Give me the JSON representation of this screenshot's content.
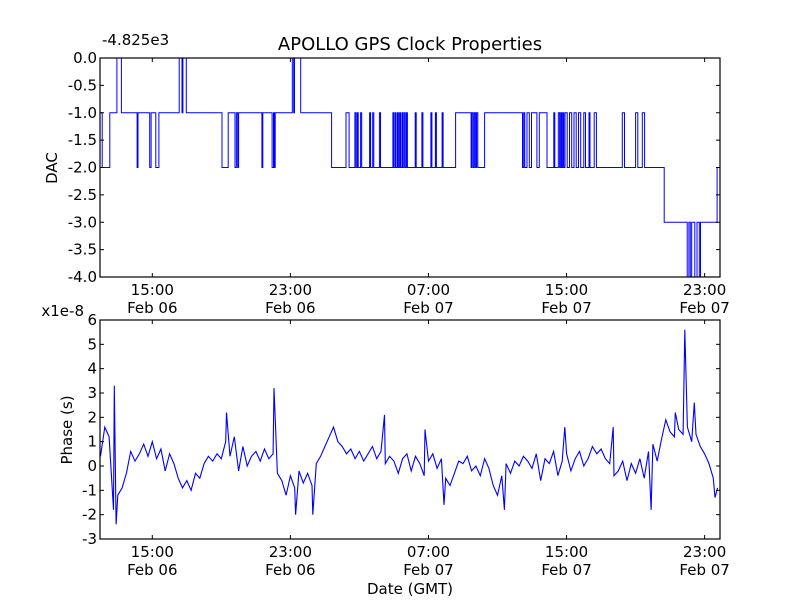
{
  "chart_data": [
    {
      "type": "line",
      "title": "APOLLO GPS Clock Properties",
      "xlabel": "",
      "ylabel": "DAC",
      "offset_text": "-4.825e3",
      "x_unit": "hours since Feb 06 00:00 GMT",
      "xlim": [
        11.97,
        47.89
      ],
      "ylim": [
        -4.0,
        0.0
      ],
      "yticks": [
        0.0,
        -0.5,
        -1.0,
        -1.5,
        -2.0,
        -2.5,
        -3.0,
        -3.5,
        -4.0
      ],
      "ytick_labels": [
        "0.0",
        "-0.5",
        "-1.0",
        "-1.5",
        "-2.0",
        "-2.5",
        "-3.0",
        "-3.5",
        "-4.0"
      ],
      "xticks": [
        15,
        23,
        31,
        39,
        47
      ],
      "xtick_labels": [
        [
          "15:00",
          "Feb 06"
        ],
        [
          "23:00",
          "Feb 06"
        ],
        [
          "07:00",
          "Feb 07"
        ],
        [
          "15:00",
          "Feb 07"
        ],
        [
          "23:00",
          "Feb 07"
        ]
      ],
      "color": "#0000ff",
      "steps": [
        [
          11.97,
          -1
        ],
        [
          12.1,
          -2
        ],
        [
          12.54,
          -1
        ],
        [
          12.95,
          0
        ],
        [
          13.21,
          -1
        ],
        [
          14.12,
          -2
        ],
        [
          14.17,
          -1
        ],
        [
          14.85,
          -2
        ],
        [
          14.93,
          -1
        ],
        [
          15.2,
          -2
        ],
        [
          15.38,
          -1
        ],
        [
          16.56,
          0
        ],
        [
          16.72,
          -1
        ],
        [
          16.77,
          0
        ],
        [
          16.97,
          -1
        ],
        [
          19.04,
          -2
        ],
        [
          19.4,
          -1
        ],
        [
          19.79,
          -2
        ],
        [
          19.87,
          -1
        ],
        [
          19.95,
          -2
        ],
        [
          20.0,
          -1
        ],
        [
          21.35,
          -2
        ],
        [
          21.4,
          -1
        ],
        [
          21.94,
          -2
        ],
        [
          22.02,
          -1
        ],
        [
          22.07,
          -2
        ],
        [
          22.12,
          -1
        ],
        [
          23.11,
          0
        ],
        [
          23.19,
          -1
        ],
        [
          23.24,
          0
        ],
        [
          23.6,
          -1
        ],
        [
          25.39,
          -2
        ],
        [
          26.22,
          -1
        ],
        [
          26.4,
          -2
        ],
        [
          26.74,
          -1
        ],
        [
          26.8,
          -2
        ],
        [
          26.87,
          -1
        ],
        [
          26.93,
          -2
        ],
        [
          27.07,
          -1
        ],
        [
          27.13,
          -2
        ],
        [
          27.59,
          -1
        ],
        [
          27.65,
          -2
        ],
        [
          27.77,
          -1
        ],
        [
          27.83,
          -2
        ],
        [
          28.16,
          -1
        ],
        [
          28.22,
          -2
        ],
        [
          28.94,
          -1
        ],
        [
          29.0,
          -2
        ],
        [
          29.07,
          -1
        ],
        [
          29.12,
          -2
        ],
        [
          29.2,
          -1
        ],
        [
          29.26,
          -2
        ],
        [
          29.33,
          -1
        ],
        [
          29.38,
          -2
        ],
        [
          29.46,
          -1
        ],
        [
          29.52,
          -2
        ],
        [
          29.59,
          -1
        ],
        [
          29.65,
          -2
        ],
        [
          29.72,
          -1
        ],
        [
          29.78,
          -2
        ],
        [
          30.23,
          -1
        ],
        [
          30.29,
          -2
        ],
        [
          30.62,
          -1
        ],
        [
          30.68,
          -2
        ],
        [
          31.14,
          -1
        ],
        [
          31.2,
          -2
        ],
        [
          31.4,
          -1
        ],
        [
          31.46,
          -2
        ],
        [
          31.79,
          -1
        ],
        [
          31.85,
          -2
        ],
        [
          32.57,
          -1
        ],
        [
          33.47,
          -2
        ],
        [
          33.53,
          -1
        ],
        [
          33.6,
          -2
        ],
        [
          33.66,
          -1
        ],
        [
          33.73,
          -2
        ],
        [
          33.79,
          -1
        ],
        [
          33.86,
          -2
        ],
        [
          34.25,
          -1
        ],
        [
          36.45,
          -2
        ],
        [
          36.52,
          -1
        ],
        [
          36.58,
          -2
        ],
        [
          36.71,
          -1
        ],
        [
          36.84,
          -2
        ],
        [
          36.97,
          -1
        ],
        [
          37.28,
          -2
        ],
        [
          37.42,
          -1
        ],
        [
          37.87,
          -2
        ],
        [
          38.26,
          -1
        ],
        [
          38.32,
          -2
        ],
        [
          38.52,
          -1
        ],
        [
          38.6,
          -2
        ],
        [
          38.66,
          -1
        ],
        [
          38.72,
          -2
        ],
        [
          38.78,
          -1
        ],
        [
          38.84,
          -2
        ],
        [
          38.91,
          -1
        ],
        [
          39.04,
          -2
        ],
        [
          39.17,
          -1
        ],
        [
          39.3,
          -2
        ],
        [
          39.43,
          -1
        ],
        [
          39.56,
          -2
        ],
        [
          39.69,
          -1
        ],
        [
          39.82,
          -2
        ],
        [
          40.0,
          -1
        ],
        [
          40.1,
          -2
        ],
        [
          40.3,
          -1
        ],
        [
          40.36,
          -2
        ],
        [
          40.6,
          -1
        ],
        [
          40.73,
          -2
        ],
        [
          42.23,
          -1
        ],
        [
          42.36,
          -2
        ],
        [
          43.0,
          -1
        ],
        [
          43.13,
          -2
        ],
        [
          43.39,
          -1
        ],
        [
          43.52,
          -2
        ],
        [
          44.66,
          -3
        ],
        [
          45.99,
          -4
        ],
        [
          46.09,
          -3
        ],
        [
          46.17,
          -4
        ],
        [
          46.25,
          -3
        ],
        [
          46.43,
          -4
        ],
        [
          46.56,
          -3
        ],
        [
          46.69,
          -4
        ],
        [
          46.76,
          -3
        ],
        [
          47.72,
          -2
        ],
        [
          47.89,
          -2
        ]
      ]
    },
    {
      "type": "line",
      "title": "",
      "xlabel": "Date (GMT)",
      "ylabel": "Phase (s)",
      "offset_text": "x1e-8",
      "x_unit": "hours since Feb 06 00:00 GMT",
      "xlim": [
        11.97,
        47.89
      ],
      "ylim": [
        -3,
        6
      ],
      "yticks": [
        -3,
        -2,
        -1,
        0,
        1,
        2,
        3,
        4,
        5,
        6
      ],
      "ytick_labels": [
        "-3",
        "-2",
        "-1",
        "0",
        "1",
        "2",
        "3",
        "4",
        "5",
        "6"
      ],
      "xticks": [
        15,
        23,
        31,
        39,
        47
      ],
      "xtick_labels": [
        [
          "15:00",
          "Feb 06"
        ],
        [
          "23:00",
          "Feb 06"
        ],
        [
          "07:00",
          "Feb 07"
        ],
        [
          "15:00",
          "Feb 07"
        ],
        [
          "23:00",
          "Feb 07"
        ]
      ],
      "color": "#0000ff",
      "x_start": 12.0,
      "x_step": 0.25,
      "y": [
        0.4,
        1.6,
        1.2,
        -1.8,
        -1.2,
        -0.9,
        -0.3,
        0.6,
        0.2,
        0.5,
        0.9,
        0.4,
        1.0,
        0.3,
        0.7,
        -0.2,
        0.5,
        0.1,
        -0.5,
        -0.9,
        -0.6,
        -1.0,
        -0.3,
        -0.5,
        0.1,
        0.4,
        0.2,
        0.5,
        0.3,
        1.0,
        0.4,
        1.2,
        -0.2,
        0.8,
        0.0,
        0.4,
        0.6,
        0.2,
        0.7,
        0.3,
        0.5,
        -0.3,
        -0.6,
        -1.2,
        -0.4,
        -0.9,
        -0.2,
        -0.7,
        -0.3,
        -0.8,
        0.1,
        0.4,
        0.8,
        1.2,
        1.6,
        1.0,
        0.8,
        0.5,
        0.7,
        0.3,
        0.6,
        0.2,
        0.5,
        0.8,
        0.3,
        0.6,
        0.1,
        0.4,
        0.2,
        -0.3,
        0.3,
        0.5,
        -0.2,
        0.4,
        0.1,
        -0.4,
        0.2,
        0.5,
        -0.1,
        0.3,
        -0.5,
        -0.8,
        -0.3,
        0.2,
        0.1,
        0.4,
        -0.2,
        0.0,
        -0.4,
        0.3,
        -0.1,
        -0.8,
        -1.2,
        -0.4,
        0.1,
        -0.3,
        0.2,
        0.0,
        0.4,
        0.2,
        -0.1,
        0.5,
        -0.6,
        0.3,
        0.1,
        0.6,
        -0.4,
        0.2,
        0.5,
        -0.2,
        0.3,
        0.6,
        0.0,
        0.3,
        0.8,
        0.5,
        0.7,
        0.3,
        0.1,
        -0.4,
        -0.2,
        0.2,
        -0.6,
        0.1,
        -0.3,
        0.3,
        -0.5,
        0.6,
        0.9,
        0.2,
        1.1,
        1.9,
        1.4,
        1.2,
        1.5,
        1.3,
        1.6,
        1.0,
        1.3,
        0.8,
        0.5,
        0.1,
        -0.5,
        -0.9
      ],
      "spikes": [
        [
          12.8,
          3.3
        ],
        [
          12.9,
          -2.4
        ],
        [
          19.3,
          2.2
        ],
        [
          22.05,
          3.2
        ],
        [
          23.3,
          -2.0
        ],
        [
          24.3,
          -2.0
        ],
        [
          28.45,
          2.1
        ],
        [
          30.8,
          1.5
        ],
        [
          31.9,
          -1.6
        ],
        [
          35.4,
          -1.8
        ],
        [
          38.9,
          1.6
        ],
        [
          41.7,
          1.6
        ],
        [
          43.9,
          -1.8
        ],
        [
          45.3,
          2.2
        ],
        [
          45.85,
          5.6
        ],
        [
          46.4,
          2.6
        ],
        [
          47.6,
          -1.3
        ]
      ]
    }
  ]
}
